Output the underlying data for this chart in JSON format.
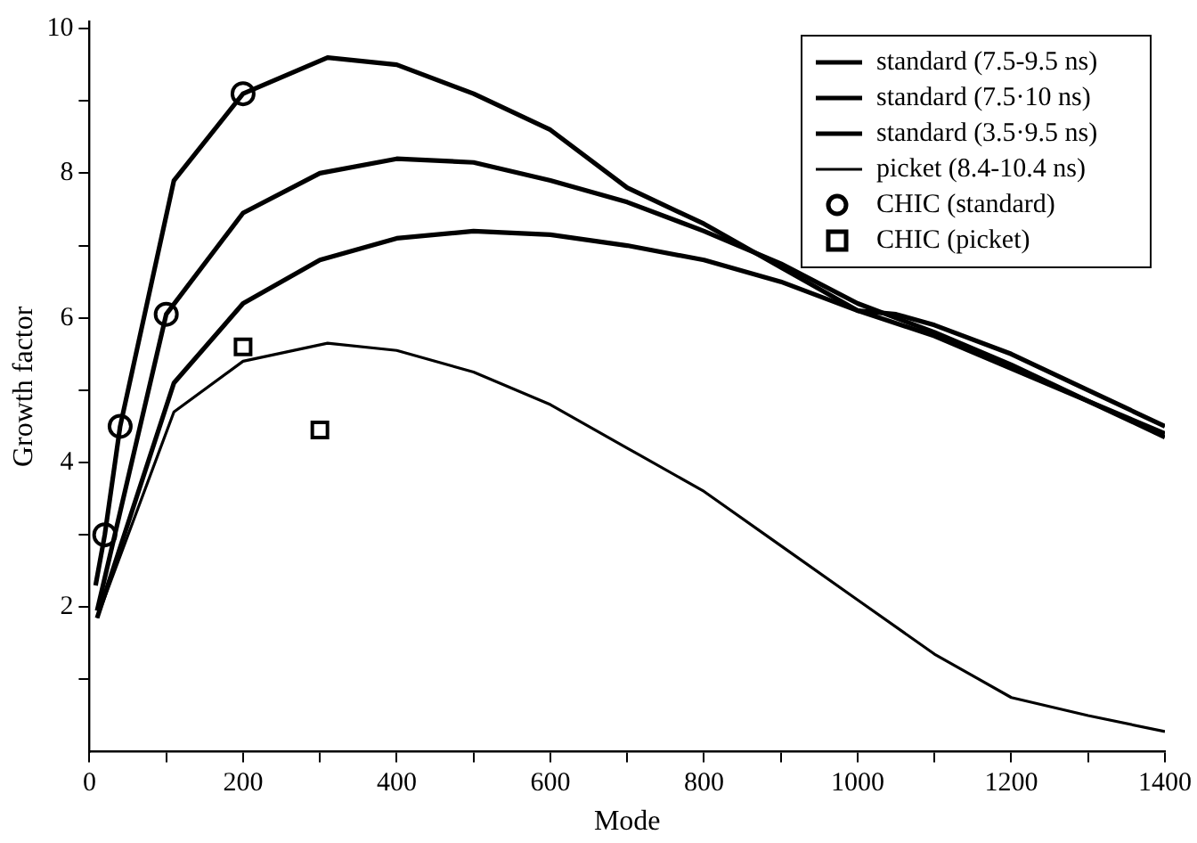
{
  "chart_data": {
    "type": "line",
    "xlabel": "Mode",
    "ylabel": "Growth factor",
    "xlim": [
      0,
      1400
    ],
    "ylim": [
      0,
      10.1
    ],
    "xticks": [
      0,
      {
        "value": 100,
        "label": null
      },
      200,
      {
        "value": 300,
        "label": null
      },
      400,
      {
        "value": 500,
        "label": null
      },
      600,
      {
        "value": 700,
        "label": null
      },
      800,
      {
        "value": 900,
        "label": null
      },
      1000,
      {
        "value": 1100,
        "label": null
      },
      1200,
      {
        "value": 1300,
        "label": null
      },
      1400
    ],
    "yticks": [
      {
        "value": 1,
        "label": null
      },
      2,
      {
        "value": 3,
        "label": null
      },
      4,
      {
        "value": 5,
        "label": null
      },
      6,
      {
        "value": 7,
        "label": null
      },
      8,
      {
        "value": 9,
        "label": null
      },
      10
    ],
    "grid": false,
    "legend": "top right",
    "marker": "none",
    "line_style": "solid",
    "series": [
      {
        "name": "standard (7.5-9.5 ns)",
        "color": "#000000",
        "x": [
          8,
          20,
          40,
          110,
          200,
          310,
          400,
          500,
          600,
          700,
          800,
          900,
          1000,
          1050,
          1100,
          1200,
          1300,
          1400
        ],
        "values": [
          2.3,
          3.0,
          4.5,
          7.9,
          9.1,
          9.6,
          9.5,
          9.1,
          8.6,
          7.8,
          7.3,
          6.7,
          6.1,
          6.05,
          5.9,
          5.5,
          5.0,
          4.5
        ]
      },
      {
        "name": "standard (7.5·10 ns)",
        "color": "#000000",
        "x": [
          10,
          100,
          200,
          300,
          400,
          500,
          600,
          700,
          800,
          900,
          1000,
          1100,
          1200,
          1300,
          1400
        ],
        "values": [
          1.95,
          6.05,
          7.45,
          8.0,
          8.2,
          8.15,
          7.9,
          7.6,
          7.2,
          6.75,
          6.2,
          5.8,
          5.35,
          4.85,
          4.4
        ]
      },
      {
        "name": "standard (3.5·9.5 ns)",
        "color": "#000000",
        "x": [
          10,
          110,
          200,
          300,
          400,
          500,
          600,
          700,
          800,
          900,
          1000,
          1100,
          1200,
          1300,
          1400
        ],
        "values": [
          1.85,
          5.1,
          6.2,
          6.8,
          7.1,
          7.2,
          7.15,
          7.0,
          6.8,
          6.5,
          6.1,
          5.75,
          5.3,
          4.85,
          4.35
        ]
      },
      {
        "name": "picket (8.4-10.4 ns)",
        "color": "#000000",
        "x": [
          10,
          110,
          200,
          310,
          400,
          500,
          600,
          700,
          800,
          900,
          1000,
          1100,
          1200,
          1300,
          1400
        ],
        "values": [
          1.85,
          4.7,
          5.4,
          5.65,
          5.55,
          5.25,
          4.8,
          4.2,
          3.6,
          2.85,
          2.1,
          1.35,
          0.75,
          0.5,
          0.28
        ]
      },
      {
        "name": "CHIC (standard)",
        "type": "scatter",
        "marker": "circle",
        "color": "#000000",
        "x": [
          20,
          40,
          100,
          200
        ],
        "values": [
          3.0,
          4.5,
          6.05,
          9.1
        ]
      },
      {
        "name": "CHIC (picket)",
        "type": "scatter",
        "marker": "square",
        "color": "#000000",
        "x": [
          200,
          300
        ],
        "values": [
          5.6,
          4.45
        ]
      }
    ]
  }
}
